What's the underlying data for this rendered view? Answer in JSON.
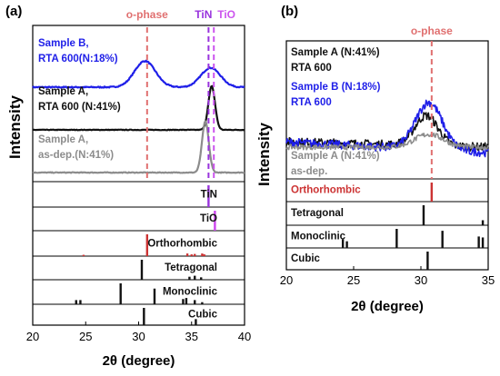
{
  "chart_data": [
    {
      "panel": "(a)",
      "type": "line",
      "xlabel": "2θ (degree)",
      "ylabel": "Intensity",
      "xlim": [
        20,
        40
      ],
      "xticks": [
        "20",
        "25",
        "30",
        "35",
        "40"
      ],
      "markers": [
        {
          "label": "o-phase",
          "x": 30.8,
          "color": "#e07070"
        },
        {
          "label": "TiN",
          "x": 36.6,
          "color": "#9933dd"
        },
        {
          "label": "TiO",
          "x": 37.1,
          "color": "#cc55ee"
        }
      ],
      "series": [
        {
          "label1": "Sample B,",
          "label2": "RTA 600(N:18%)",
          "color": "#1f1fe8",
          "peaks": [
            {
              "x": 30.6,
              "h": 0.27,
              "w": 1.4
            },
            {
              "x": 36.8,
              "h": 0.2,
              "w": 1.3
            }
          ]
        },
        {
          "label1": "Sample A,",
          "label2": "RTA 600 (N:41%)",
          "color": "#111111",
          "peaks": [
            {
              "x": 36.9,
              "h": 0.82,
              "w": 0.45
            }
          ]
        },
        {
          "label1": "Sample A,",
          "label2": "as-dep.(N:41%)",
          "color": "#8c8c8c",
          "peaks": [
            {
              "x": 36.3,
              "h": 0.85,
              "w": 0.45
            }
          ]
        }
      ],
      "references": [
        {
          "name": "TiN",
          "name_color": "#111111",
          "line_color": "#9933dd",
          "lines": [
            {
              "x": 36.6,
              "h": 1.0
            }
          ]
        },
        {
          "name": "TiO",
          "name_color": "#111111",
          "line_color": "#cc44ee",
          "lines": [
            {
              "x": 37.2,
              "h": 1.0
            }
          ]
        },
        {
          "name": "Orthorhombic",
          "name_color": "#111111",
          "line_color": "#cc3333",
          "lines": [
            {
              "x": 24.8,
              "h": 0.06
            },
            {
              "x": 30.8,
              "h": 1.0
            },
            {
              "x": 34.6,
              "h": 0.12
            },
            {
              "x": 35.0,
              "h": 0.08
            },
            {
              "x": 35.3,
              "h": 0.1
            },
            {
              "x": 36.0,
              "h": 0.12
            },
            {
              "x": 36.2,
              "h": 0.08
            }
          ]
        },
        {
          "name": "Tetragonal",
          "name_color": "#111111",
          "line_color": "#111111",
          "lines": [
            {
              "x": 30.3,
              "h": 1.0
            },
            {
              "x": 34.8,
              "h": 0.15
            },
            {
              "x": 35.3,
              "h": 0.2
            },
            {
              "x": 35.9,
              "h": 0.12
            }
          ]
        },
        {
          "name": "Monoclinic",
          "name_color": "#111111",
          "line_color": "#111111",
          "lines": [
            {
              "x": 24.1,
              "h": 0.2
            },
            {
              "x": 24.5,
              "h": 0.2
            },
            {
              "x": 28.3,
              "h": 1.0
            },
            {
              "x": 31.5,
              "h": 0.75
            },
            {
              "x": 34.2,
              "h": 0.25
            },
            {
              "x": 34.5,
              "h": 0.3
            },
            {
              "x": 35.3,
              "h": 0.2
            },
            {
              "x": 36.0,
              "h": 0.1
            }
          ]
        },
        {
          "name": "Cubic",
          "name_color": "#111111",
          "line_color": "#111111",
          "lines": [
            {
              "x": 30.5,
              "h": 1.0
            },
            {
              "x": 35.4,
              "h": 0.35
            }
          ]
        }
      ]
    },
    {
      "panel": "(b)",
      "type": "line",
      "xlabel": "2θ (degree)",
      "ylabel": "Intensity",
      "xlim": [
        20,
        35
      ],
      "xticks": [
        "20",
        "25",
        "30",
        "35"
      ],
      "markers": [
        {
          "label": "o-phase",
          "x": 30.8,
          "color": "#e07070"
        }
      ],
      "series": [
        {
          "label1": "Sample A (N:41%)",
          "label2": "RTA 600",
          "color": "#111111",
          "peaks": [
            {
              "x": 30.4,
              "h": 0.35,
              "w": 1.2
            }
          ],
          "noise": 0.1,
          "tilt": 0.18
        },
        {
          "label1": "Sample B (N:18%)",
          "label2": "RTA 600",
          "color": "#1f1fe8",
          "peaks": [
            {
              "x": 30.6,
              "h": 0.55,
              "w": 1.4
            }
          ],
          "noise": 0.1,
          "tilt": 0.35
        },
        {
          "label1": "Sample A (N:41%)",
          "label2": "as-dep.",
          "color": "#8c8c8c",
          "peaks": [
            {
              "x": 30.6,
              "h": 0.15,
              "w": 1.5
            }
          ],
          "noise": 0.06,
          "tilt": 0.0
        }
      ],
      "references": [
        {
          "name": "Orthorhombic",
          "name_color": "#cc3333",
          "line_color": "#cc3333",
          "lines": [
            {
              "x": 30.8,
              "h": 1.0
            }
          ]
        },
        {
          "name": "Tetragonal",
          "name_color": "#111111",
          "line_color": "#111111",
          "lines": [
            {
              "x": 30.2,
              "h": 1.0
            },
            {
              "x": 34.6,
              "h": 0.25
            }
          ]
        },
        {
          "name": "Monoclinic",
          "name_color": "#111111",
          "line_color": "#111111",
          "lines": [
            {
              "x": 24.2,
              "h": 0.45
            },
            {
              "x": 24.5,
              "h": 0.35
            },
            {
              "x": 28.2,
              "h": 1.0
            },
            {
              "x": 31.6,
              "h": 0.9
            },
            {
              "x": 34.3,
              "h": 0.6
            },
            {
              "x": 34.6,
              "h": 0.55
            }
          ]
        },
        {
          "name": "Cubic",
          "name_color": "#111111",
          "line_color": "#111111",
          "lines": [
            {
              "x": 30.5,
              "h": 1.0
            }
          ]
        }
      ]
    }
  ]
}
